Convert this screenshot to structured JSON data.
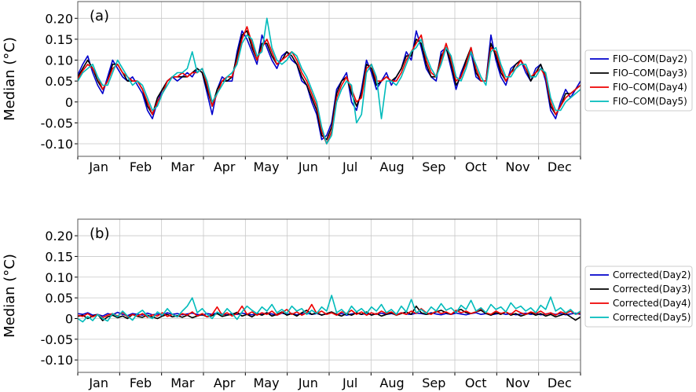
{
  "chart_data": [
    {
      "type": "line",
      "panel_label": "(a)",
      "ylabel": "Median (°C)",
      "months": [
        "Jan",
        "Feb",
        "Mar",
        "Apr",
        "May",
        "Jun",
        "Jul",
        "Aug",
        "Sep",
        "Oct",
        "Nov",
        "Dec"
      ],
      "ylim": [
        -0.13,
        0.24
      ],
      "yticks": [
        -0.1,
        -0.05,
        0,
        0.05,
        0.1,
        0.15,
        0.2
      ],
      "ytick_labels": [
        "-0.10",
        "-0.05",
        "0",
        "0.05",
        "0.10",
        "0.15",
        "0.20"
      ],
      "grid": true,
      "legend_position": "right",
      "series": [
        {
          "name": "FIO–COM(Day2)",
          "color": "#0000cc",
          "values": [
            0.065,
            0.09,
            0.11,
            0.07,
            0.04,
            0.02,
            0.06,
            0.1,
            0.08,
            0.06,
            0.05,
            0.06,
            0.04,
            0.02,
            -0.02,
            -0.04,
            0.0,
            0.03,
            0.05,
            0.06,
            0.05,
            0.06,
            0.07,
            0.06,
            0.08,
            0.07,
            0.02,
            -0.03,
            0.03,
            0.06,
            0.05,
            0.05,
            0.12,
            0.17,
            0.15,
            0.12,
            0.09,
            0.16,
            0.13,
            0.1,
            0.08,
            0.11,
            0.12,
            0.1,
            0.09,
            0.05,
            0.04,
            0.0,
            -0.03,
            -0.09,
            -0.08,
            -0.05,
            0.03,
            0.05,
            0.07,
            0.0,
            -0.02,
            0.03,
            0.1,
            0.07,
            0.03,
            0.05,
            0.07,
            0.04,
            0.06,
            0.08,
            0.12,
            0.1,
            0.17,
            0.13,
            0.08,
            0.06,
            0.05,
            0.12,
            0.13,
            0.08,
            0.03,
            0.07,
            0.1,
            0.12,
            0.06,
            0.05,
            0.05,
            0.16,
            0.1,
            0.06,
            0.04,
            0.08,
            0.09,
            0.1,
            0.07,
            0.05,
            0.08,
            0.09,
            0.05,
            -0.02,
            -0.04,
            0.0,
            0.03,
            0.01,
            0.03,
            0.05
          ]
        },
        {
          "name": "FIO–COM(Day3)",
          "color": "#000000",
          "values": [
            0.06,
            0.08,
            0.1,
            0.08,
            0.05,
            0.03,
            0.05,
            0.09,
            0.09,
            0.07,
            0.05,
            0.05,
            0.05,
            0.03,
            -0.01,
            -0.03,
            0.01,
            0.03,
            0.05,
            0.06,
            0.06,
            0.06,
            0.06,
            0.07,
            0.08,
            0.07,
            0.03,
            -0.01,
            0.03,
            0.05,
            0.05,
            0.06,
            0.11,
            0.16,
            0.17,
            0.13,
            0.1,
            0.14,
            0.14,
            0.11,
            0.09,
            0.1,
            0.12,
            0.11,
            0.09,
            0.06,
            0.04,
            0.01,
            -0.02,
            -0.08,
            -0.09,
            -0.06,
            0.02,
            0.05,
            0.06,
            0.02,
            -0.01,
            0.02,
            0.09,
            0.08,
            0.04,
            0.05,
            0.06,
            0.05,
            0.06,
            0.08,
            0.11,
            0.11,
            0.15,
            0.14,
            0.09,
            0.06,
            0.06,
            0.11,
            0.13,
            0.09,
            0.04,
            0.06,
            0.1,
            0.13,
            0.07,
            0.05,
            0.05,
            0.14,
            0.11,
            0.07,
            0.05,
            0.07,
            0.09,
            0.1,
            0.08,
            0.05,
            0.07,
            0.09,
            0.06,
            -0.01,
            -0.03,
            -0.01,
            0.02,
            0.02,
            0.03,
            0.04
          ]
        },
        {
          "name": "FIO–COM(Day4)",
          "color": "#ee0000",
          "values": [
            0.055,
            0.075,
            0.09,
            0.08,
            0.06,
            0.03,
            0.05,
            0.08,
            0.09,
            0.07,
            0.06,
            0.05,
            0.05,
            0.03,
            0.0,
            -0.03,
            0.0,
            0.02,
            0.05,
            0.06,
            0.06,
            0.07,
            0.06,
            0.07,
            0.07,
            0.08,
            0.04,
            -0.01,
            0.02,
            0.05,
            0.06,
            0.06,
            0.1,
            0.15,
            0.18,
            0.14,
            0.1,
            0.13,
            0.15,
            0.12,
            0.09,
            0.1,
            0.11,
            0.12,
            0.1,
            0.07,
            0.05,
            0.02,
            -0.01,
            -0.07,
            -0.1,
            -0.07,
            0.01,
            0.04,
            0.06,
            0.03,
            0.0,
            0.01,
            0.08,
            0.09,
            0.05,
            0.05,
            0.06,
            0.05,
            0.05,
            0.07,
            0.1,
            0.12,
            0.14,
            0.16,
            0.1,
            0.07,
            0.06,
            0.1,
            0.14,
            0.1,
            0.05,
            0.06,
            0.09,
            0.13,
            0.08,
            0.05,
            0.05,
            0.13,
            0.12,
            0.08,
            0.05,
            0.07,
            0.08,
            0.1,
            0.08,
            0.06,
            0.07,
            0.08,
            0.06,
            0.0,
            -0.03,
            -0.01,
            0.01,
            0.02,
            0.03,
            0.04
          ]
        },
        {
          "name": "FIO–COM(Day5)",
          "color": "#00bbbb",
          "values": [
            0.05,
            0.07,
            0.08,
            0.09,
            0.06,
            0.04,
            0.04,
            0.07,
            0.1,
            0.08,
            0.06,
            0.04,
            0.05,
            0.04,
            0.01,
            -0.02,
            -0.01,
            0.02,
            0.04,
            0.06,
            0.07,
            0.07,
            0.08,
            0.12,
            0.07,
            0.08,
            0.05,
            0.0,
            0.02,
            0.04,
            0.06,
            0.07,
            0.09,
            0.14,
            0.16,
            0.15,
            0.11,
            0.12,
            0.2,
            0.13,
            0.1,
            0.09,
            0.1,
            0.12,
            0.11,
            0.08,
            0.06,
            0.03,
            0.0,
            -0.06,
            -0.1,
            -0.08,
            0.0,
            0.03,
            0.05,
            0.04,
            -0.05,
            -0.03,
            0.07,
            0.09,
            0.06,
            -0.04,
            0.05,
            0.05,
            0.04,
            0.06,
            0.09,
            0.12,
            0.13,
            0.15,
            0.11,
            0.08,
            0.06,
            0.09,
            0.13,
            0.11,
            0.06,
            0.05,
            0.08,
            0.12,
            0.09,
            0.06,
            0.04,
            0.12,
            0.13,
            0.09,
            0.06,
            0.06,
            0.08,
            0.09,
            0.09,
            0.06,
            0.06,
            0.08,
            0.07,
            0.01,
            -0.02,
            -0.02,
            0.0,
            0.01,
            0.02,
            0.03
          ]
        }
      ]
    },
    {
      "type": "line",
      "panel_label": "(b)",
      "ylabel": "Median (°C)",
      "months": [
        "Jan",
        "Feb",
        "Mar",
        "Apr",
        "May",
        "Jun",
        "Jul",
        "Aug",
        "Sep",
        "Oct",
        "Nov",
        "Dec"
      ],
      "ylim": [
        -0.13,
        0.24
      ],
      "yticks": [
        -0.1,
        -0.05,
        0,
        0.05,
        0.1,
        0.15,
        0.2
      ],
      "ytick_labels": [
        "-0.10",
        "-0.05",
        "0",
        "0.05",
        "0.10",
        "0.15",
        "0.20"
      ],
      "grid": true,
      "legend_position": "right",
      "series": [
        {
          "name": "Corrected(Day2)",
          "color": "#0000cc",
          "values": [
            0.012,
            0.01,
            0.014,
            0.008,
            0.01,
            0.006,
            0.012,
            0.009,
            0.015,
            0.01,
            0.007,
            0.012,
            0.01,
            0.008,
            0.013,
            0.009,
            0.011,
            0.008,
            0.014,
            0.01,
            0.012,
            0.009,
            0.011,
            0.013,
            0.01,
            0.008,
            0.012,
            0.01,
            0.014,
            0.011,
            0.009,
            0.012,
            0.01,
            0.013,
            0.011,
            0.009,
            0.012,
            0.01,
            0.014,
            0.011,
            0.008,
            0.013,
            0.01,
            0.012,
            0.009,
            0.011,
            0.013,
            0.01,
            0.012,
            0.009,
            0.011,
            0.014,
            0.01,
            0.012,
            0.008,
            0.011,
            0.013,
            0.01,
            0.012,
            0.009,
            0.011,
            0.013,
            0.01,
            0.012,
            0.009,
            0.014,
            0.011,
            0.01,
            0.013,
            0.012,
            0.01,
            0.014,
            0.011,
            0.009,
            0.012,
            0.01,
            0.013,
            0.011,
            0.009,
            0.012,
            0.014,
            0.01,
            0.012,
            0.009,
            0.011,
            0.013,
            0.01,
            0.012,
            0.009,
            0.011,
            0.013,
            0.01,
            0.012,
            0.009,
            0.011,
            0.013,
            0.01,
            0.012,
            0.009,
            0.011,
            0.013,
            0.01
          ]
        },
        {
          "name": "Corrected(Day3)",
          "color": "#000000",
          "values": [
            0.005,
            0.008,
            0.0,
            0.006,
            0.01,
            -0.005,
            0.004,
            0.008,
            0.002,
            0.006,
            0.0,
            0.01,
            0.005,
            0.003,
            0.008,
            0.004,
            0.0,
            0.006,
            0.01,
            0.004,
            0.007,
            0.003,
            0.008,
            0.002,
            0.006,
            0.01,
            0.004,
            0.007,
            0.012,
            0.005,
            0.008,
            0.01,
            0.015,
            0.006,
            0.01,
            0.004,
            0.012,
            0.008,
            0.014,
            0.006,
            0.01,
            0.016,
            0.008,
            0.012,
            0.006,
            0.014,
            0.02,
            0.01,
            0.014,
            0.008,
            0.012,
            0.016,
            0.01,
            0.006,
            0.012,
            0.008,
            0.014,
            0.01,
            0.016,
            0.008,
            0.012,
            0.006,
            0.01,
            0.014,
            0.008,
            0.012,
            0.016,
            0.01,
            0.03,
            0.014,
            0.01,
            0.012,
            0.016,
            0.02,
            0.014,
            0.01,
            0.018,
            0.022,
            0.014,
            0.012,
            0.016,
            0.02,
            0.012,
            0.008,
            0.014,
            0.01,
            0.016,
            0.008,
            0.012,
            0.006,
            0.01,
            0.014,
            0.008,
            0.012,
            0.006,
            0.01,
            0.004,
            0.008,
            0.012,
            0.004,
            -0.004,
            0.004
          ]
        },
        {
          "name": "Corrected(Day4)",
          "color": "#ee0000",
          "values": [
            0.008,
            0.005,
            0.012,
            0.004,
            0.01,
            0.002,
            0.008,
            0.012,
            0.006,
            0.015,
            0.004,
            0.01,
            0.006,
            0.012,
            0.003,
            0.009,
            0.006,
            0.014,
            0.005,
            0.01,
            0.004,
            0.012,
            0.008,
            0.016,
            0.006,
            0.012,
            0.004,
            0.01,
            0.028,
            0.008,
            0.014,
            0.006,
            0.012,
            0.03,
            0.01,
            0.016,
            0.008,
            0.014,
            0.01,
            0.018,
            0.008,
            0.014,
            0.022,
            0.01,
            0.016,
            0.008,
            0.014,
            0.034,
            0.012,
            0.018,
            0.01,
            0.014,
            0.008,
            0.016,
            0.012,
            0.02,
            0.01,
            0.016,
            0.008,
            0.014,
            0.01,
            0.018,
            0.012,
            0.016,
            0.008,
            0.014,
            0.01,
            0.018,
            0.012,
            0.024,
            0.014,
            0.01,
            0.018,
            0.012,
            0.016,
            0.01,
            0.02,
            0.014,
            0.018,
            0.012,
            0.016,
            0.024,
            0.014,
            0.01,
            0.018,
            0.012,
            0.016,
            0.01,
            0.02,
            0.014,
            0.01,
            0.016,
            0.012,
            0.018,
            0.01,
            0.014,
            0.008,
            0.016,
            0.012,
            0.018,
            0.01,
            0.014
          ]
        },
        {
          "name": "Corrected(Day5)",
          "color": "#00bbbb",
          "values": [
            0.0,
            -0.008,
            0.005,
            -0.005,
            0.01,
            0.0,
            -0.006,
            0.012,
            0.004,
            0.018,
            0.006,
            -0.004,
            0.012,
            0.02,
            0.006,
            0.0,
            0.016,
            0.008,
            0.024,
            0.01,
            0.004,
            0.018,
            0.03,
            0.05,
            0.014,
            0.024,
            0.01,
            0.0,
            0.016,
            0.008,
            0.024,
            0.012,
            -0.002,
            0.016,
            0.03,
            0.02,
            0.012,
            0.028,
            0.018,
            0.034,
            0.014,
            0.022,
            0.012,
            0.03,
            0.018,
            0.024,
            0.01,
            0.02,
            0.012,
            0.028,
            0.018,
            0.056,
            0.014,
            0.022,
            0.01,
            0.03,
            0.016,
            0.024,
            0.012,
            0.028,
            0.018,
            0.034,
            0.014,
            0.022,
            0.01,
            0.03,
            0.016,
            0.046,
            0.014,
            0.022,
            0.012,
            0.028,
            0.018,
            0.036,
            0.02,
            0.026,
            0.014,
            0.032,
            0.022,
            0.044,
            0.018,
            0.026,
            0.014,
            0.034,
            0.022,
            0.028,
            0.016,
            0.038,
            0.024,
            0.03,
            0.018,
            0.026,
            0.014,
            0.032,
            0.022,
            0.052,
            0.018,
            0.026,
            0.014,
            0.022,
            0.01,
            0.018
          ]
        }
      ]
    }
  ]
}
